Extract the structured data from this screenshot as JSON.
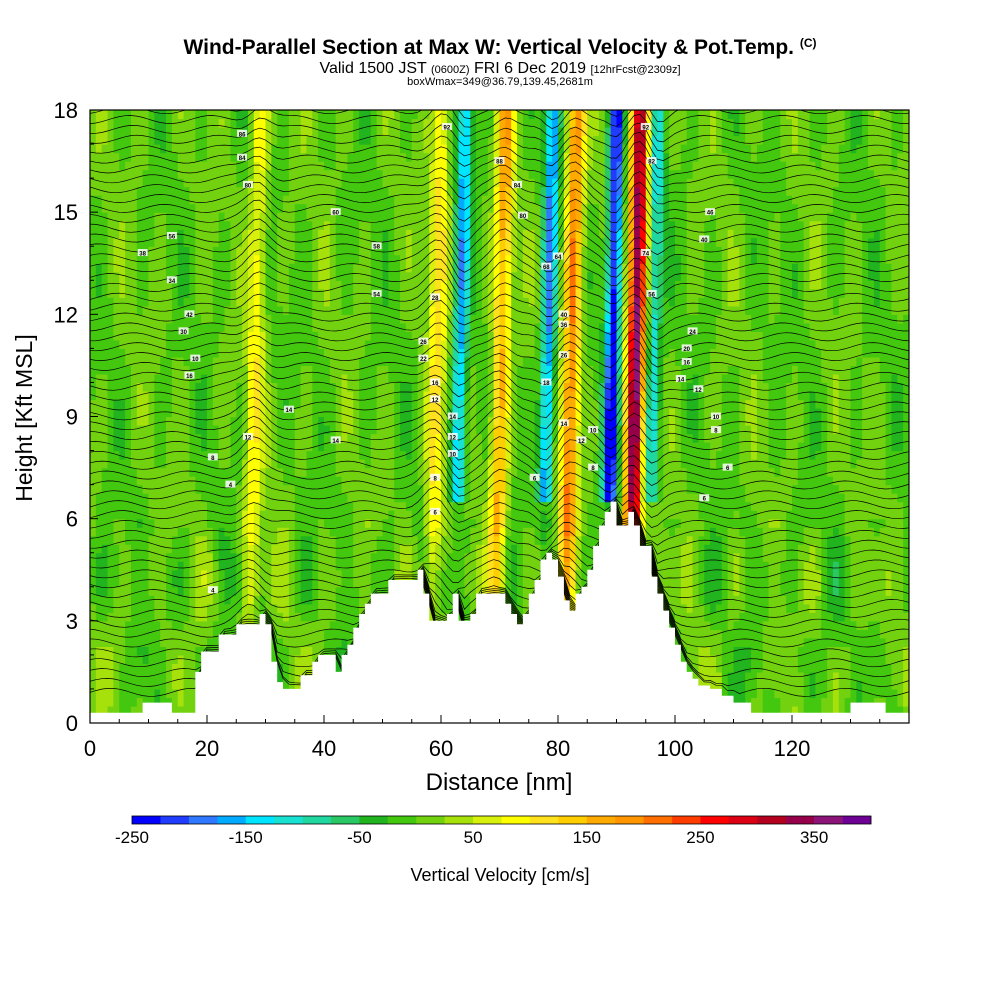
{
  "chart_data": {
    "type": "heatmap",
    "title": "Wind-Parallel Section at Max W: Vertical Velocity & Pot.Temp.",
    "title_mark": "(C)",
    "subtitle_main": "Valid 1500 JST",
    "subtitle_utc": "(0600Z)",
    "subtitle_date": "FRI 6 Dec 2019",
    "subtitle_fcst": "[12hrFcst@2309z]",
    "subtitle2": "boxWmax=349@36.79,139.45,2681m",
    "xlabel": "Distance [nm]",
    "ylabel": "Height [Kft MSL]",
    "xlim": [
      0,
      140
    ],
    "ylim": [
      0,
      18
    ],
    "xticks": [
      0,
      20,
      40,
      60,
      80,
      100,
      120
    ],
    "yticks": [
      0,
      3,
      6,
      9,
      12,
      15,
      18
    ],
    "colorbar_label": "Vertical Velocity [cm/s]",
    "colorbar_ticks": [
      "-250",
      "-150",
      "-50",
      "50",
      "150",
      "250",
      "350"
    ],
    "colorbar_range": [
      -250,
      400
    ],
    "colorbar_colors": [
      "#0000ff",
      "#1f3cff",
      "#2f78ff",
      "#00aaff",
      "#00e5ff",
      "#19e1d2",
      "#21d7a0",
      "#2ac864",
      "#22b41e",
      "#43c80f",
      "#72d20f",
      "#a6e10c",
      "#d7f00c",
      "#ffff00",
      "#ffe11e",
      "#ffcd00",
      "#ffaa00",
      "#ff9600",
      "#ff6e00",
      "#ff3c00",
      "#ff0000",
      "#dc0014",
      "#b4001e",
      "#96004b",
      "#8c1478",
      "#6e0096"
    ],
    "wmax_cms": 349,
    "updrafts": [
      {
        "x": 27,
        "w": 90
      },
      {
        "x": 58,
        "w": 110
      },
      {
        "x": 69,
        "w": 160
      },
      {
        "x": 81,
        "w": 200
      },
      {
        "x": 92,
        "w": 349
      }
    ],
    "downdrafts": [
      {
        "x": 62,
        "w": -160
      },
      {
        "x": 77,
        "w": -180
      },
      {
        "x": 88,
        "w": -250
      },
      {
        "x": 95,
        "w": -120
      }
    ],
    "terrain_kft": [
      [
        0,
        0.3
      ],
      [
        8,
        0.3
      ],
      [
        9,
        0.6
      ],
      [
        13,
        0.6
      ],
      [
        14,
        0.3
      ],
      [
        17,
        0.3
      ],
      [
        18,
        1.5
      ],
      [
        19,
        2.1
      ],
      [
        21,
        2.1
      ],
      [
        22,
        2.6
      ],
      [
        24,
        2.6
      ],
      [
        25,
        2.9
      ],
      [
        28,
        2.9
      ],
      [
        29,
        3.2
      ],
      [
        30,
        2.9
      ],
      [
        31,
        1.8
      ],
      [
        32,
        1.2
      ],
      [
        33,
        1.0
      ],
      [
        35,
        1.0
      ],
      [
        36,
        1.4
      ],
      [
        38,
        1.8
      ],
      [
        39,
        2.0
      ],
      [
        41,
        2.0
      ],
      [
        42,
        1.5
      ],
      [
        43,
        2.0
      ],
      [
        44,
        2.3
      ],
      [
        45,
        2.8
      ],
      [
        46,
        3.2
      ],
      [
        47,
        3.5
      ],
      [
        48,
        3.8
      ],
      [
        50,
        3.8
      ],
      [
        51,
        4.2
      ],
      [
        55,
        4.2
      ],
      [
        56,
        4.5
      ],
      [
        57,
        3.8
      ],
      [
        58,
        3.0
      ],
      [
        60,
        3.0
      ],
      [
        61,
        3.2
      ],
      [
        62,
        3.8
      ],
      [
        63,
        3.0
      ],
      [
        64,
        3.0
      ],
      [
        65,
        3.2
      ],
      [
        66,
        3.8
      ],
      [
        70,
        3.8
      ],
      [
        71,
        3.5
      ],
      [
        72,
        3.2
      ],
      [
        73,
        2.9
      ],
      [
        74,
        3.2
      ],
      [
        75,
        3.8
      ],
      [
        76,
        4.2
      ],
      [
        77,
        4.8
      ],
      [
        78,
        5.0
      ],
      [
        79,
        4.8
      ],
      [
        80,
        4.3
      ],
      [
        81,
        3.6
      ],
      [
        82,
        3.3
      ],
      [
        83,
        3.8
      ],
      [
        84,
        4.0
      ],
      [
        85,
        4.5
      ],
      [
        86,
        5.2
      ],
      [
        87,
        5.8
      ],
      [
        88,
        6.2
      ],
      [
        89,
        6.5
      ],
      [
        90,
        5.8
      ],
      [
        91,
        5.8
      ],
      [
        92,
        6.2
      ],
      [
        93,
        5.8
      ],
      [
        94,
        5.2
      ],
      [
        96,
        4.3
      ],
      [
        97,
        3.8
      ],
      [
        98,
        3.3
      ],
      [
        99,
        2.8
      ],
      [
        100,
        2.3
      ],
      [
        101,
        1.8
      ],
      [
        102,
        1.5
      ],
      [
        103,
        1.3
      ],
      [
        104,
        1.1
      ],
      [
        106,
        1.0
      ],
      [
        108,
        0.8
      ],
      [
        110,
        0.6
      ],
      [
        113,
        0.3
      ],
      [
        118,
        0.3
      ],
      [
        120,
        0.3
      ],
      [
        129,
        0.3
      ],
      [
        130,
        0.6
      ],
      [
        135,
        0.6
      ],
      [
        136,
        0.3
      ],
      [
        140,
        0.3
      ]
    ],
    "contour_labels": [
      {
        "x": 26,
        "y": 17.3,
        "t": "86"
      },
      {
        "x": 26,
        "y": 16.6,
        "t": "84"
      },
      {
        "x": 27,
        "y": 15.8,
        "t": "80"
      },
      {
        "x": 14,
        "y": 14.3,
        "t": "56"
      },
      {
        "x": 9,
        "y": 13.8,
        "t": "38"
      },
      {
        "x": 14,
        "y": 13.0,
        "t": "34"
      },
      {
        "x": 17,
        "y": 12.0,
        "t": "42"
      },
      {
        "x": 16,
        "y": 11.5,
        "t": "30"
      },
      {
        "x": 18,
        "y": 10.7,
        "t": "10"
      },
      {
        "x": 17,
        "y": 10.2,
        "t": "16"
      },
      {
        "x": 34,
        "y": 9.2,
        "t": "14"
      },
      {
        "x": 27,
        "y": 8.4,
        "t": "12"
      },
      {
        "x": 21,
        "y": 7.8,
        "t": "8"
      },
      {
        "x": 24,
        "y": 7.0,
        "t": "4"
      },
      {
        "x": 21,
        "y": 3.9,
        "t": "4"
      },
      {
        "x": 42,
        "y": 15.0,
        "t": "60"
      },
      {
        "x": 49,
        "y": 14.0,
        "t": "58"
      },
      {
        "x": 49,
        "y": 12.6,
        "t": "54"
      },
      {
        "x": 42,
        "y": 8.3,
        "t": "14"
      },
      {
        "x": 59,
        "y": 12.5,
        "t": "28"
      },
      {
        "x": 57,
        "y": 11.2,
        "t": "26"
      },
      {
        "x": 57,
        "y": 10.7,
        "t": "22"
      },
      {
        "x": 59,
        "y": 10.0,
        "t": "16"
      },
      {
        "x": 59,
        "y": 9.5,
        "t": "12"
      },
      {
        "x": 62,
        "y": 9.0,
        "t": "14"
      },
      {
        "x": 62,
        "y": 8.4,
        "t": "12"
      },
      {
        "x": 62,
        "y": 7.9,
        "t": "10"
      },
      {
        "x": 59,
        "y": 7.2,
        "t": "8"
      },
      {
        "x": 59,
        "y": 6.2,
        "t": "6"
      },
      {
        "x": 61,
        "y": 17.5,
        "t": "92"
      },
      {
        "x": 70,
        "y": 16.5,
        "t": "88"
      },
      {
        "x": 73,
        "y": 15.8,
        "t": "84"
      },
      {
        "x": 74,
        "y": 14.9,
        "t": "80"
      },
      {
        "x": 78,
        "y": 13.4,
        "t": "68"
      },
      {
        "x": 80,
        "y": 13.7,
        "t": "64"
      },
      {
        "x": 81,
        "y": 12.0,
        "t": "40"
      },
      {
        "x": 81,
        "y": 11.7,
        "t": "36"
      },
      {
        "x": 81,
        "y": 10.8,
        "t": "26"
      },
      {
        "x": 78,
        "y": 10.0,
        "t": "18"
      },
      {
        "x": 81,
        "y": 8.8,
        "t": "14"
      },
      {
        "x": 84,
        "y": 8.3,
        "t": "12"
      },
      {
        "x": 86,
        "y": 8.6,
        "t": "10"
      },
      {
        "x": 86,
        "y": 7.5,
        "t": "8"
      },
      {
        "x": 76,
        "y": 7.2,
        "t": "6"
      },
      {
        "x": 95,
        "y": 17.5,
        "t": "92"
      },
      {
        "x": 96,
        "y": 16.5,
        "t": "82"
      },
      {
        "x": 95,
        "y": 13.8,
        "t": "74"
      },
      {
        "x": 96,
        "y": 12.6,
        "t": "56"
      },
      {
        "x": 106,
        "y": 15.0,
        "t": "46"
      },
      {
        "x": 105,
        "y": 14.2,
        "t": "40"
      },
      {
        "x": 103,
        "y": 11.5,
        "t": "24"
      },
      {
        "x": 102,
        "y": 11.0,
        "t": "20"
      },
      {
        "x": 102,
        "y": 10.6,
        "t": "16"
      },
      {
        "x": 101,
        "y": 10.1,
        "t": "14"
      },
      {
        "x": 104,
        "y": 9.8,
        "t": "12"
      },
      {
        "x": 107,
        "y": 9.0,
        "t": "10"
      },
      {
        "x": 107,
        "y": 8.6,
        "t": "8"
      },
      {
        "x": 109,
        "y": 7.5,
        "t": "6"
      },
      {
        "x": 105,
        "y": 6.6,
        "t": "6"
      }
    ]
  }
}
